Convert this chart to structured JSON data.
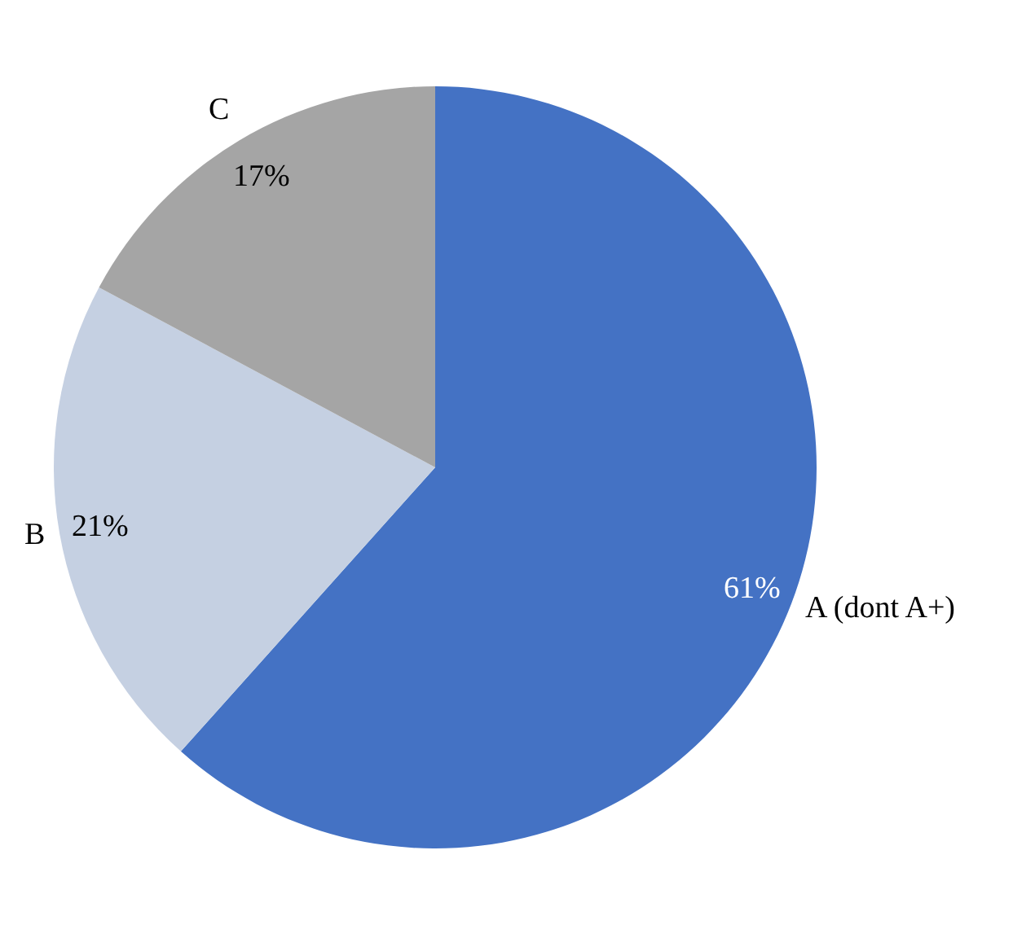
{
  "chart_data": {
    "type": "pie",
    "categories": [
      "A (dont A+)",
      "B",
      "C"
    ],
    "values": [
      61,
      21,
      17
    ],
    "value_labels": [
      "61%",
      "21%",
      "17%"
    ],
    "colors": [
      "#4472c4",
      "#c5d0e2",
      "#a5a5a5"
    ],
    "legend": false
  }
}
